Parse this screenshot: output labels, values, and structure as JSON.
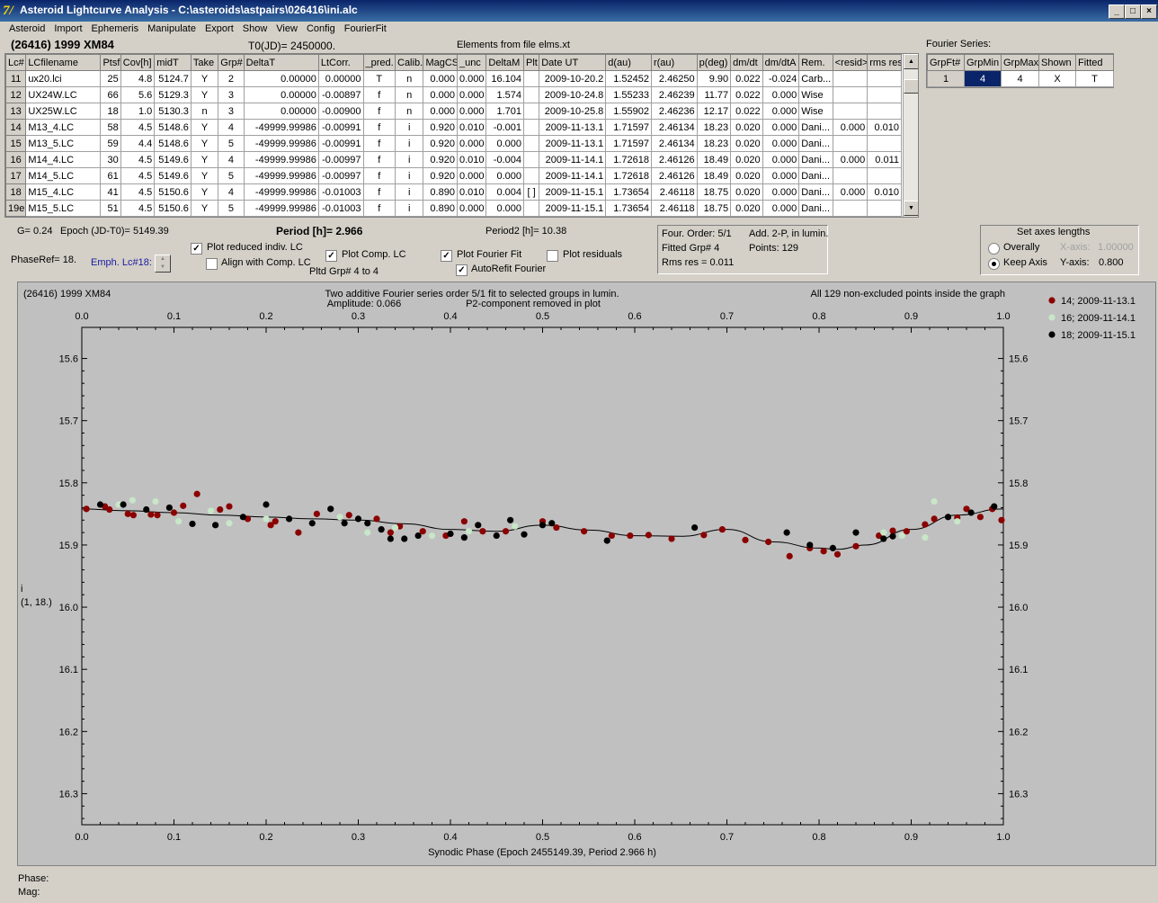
{
  "window": {
    "title": "Asteroid Lightcurve Analysis - C:\\asteroids\\astpairs\\026416\\ini.alc"
  },
  "menu": [
    "Asteroid",
    "Import",
    "Ephemeris",
    "Manipulate",
    "Export",
    "Show",
    "View",
    "Config",
    "FourierFit"
  ],
  "header": {
    "asteroid": "(26416) 1999 XM84",
    "t0": "T0(JD)= 2450000.",
    "elements": "Elements from file elms.xt"
  },
  "table": {
    "columns": [
      "Lc#",
      "LCfilename",
      "Ptsf",
      "Cov[h]",
      "midT",
      "Take",
      "Grp#",
      "DeltaT",
      "LtCorr.",
      "_pred.",
      "Calib.",
      "MagCS",
      "_unc",
      "DeltaM",
      "Plt",
      "Date UT",
      "d(au)",
      "r(au)",
      "p(deg)",
      "dm/dt",
      "dm/dtA",
      "Rem.",
      "<resid>",
      "rms res"
    ],
    "rows": [
      [
        "11",
        "ux20.lci",
        "25",
        "4.8",
        "5124.7",
        "Y",
        "2",
        "0.00000",
        "0.00000",
        "T",
        "n",
        "0.000",
        "0.000",
        "16.104",
        "",
        "2009-10-20.2",
        "1.52452",
        "2.46250",
        "9.90",
        "0.022",
        "-0.024",
        "Carb...",
        "",
        ""
      ],
      [
        "12",
        "UX24W.LC",
        "66",
        "5.6",
        "5129.3",
        "Y",
        "3",
        "0.00000",
        "-0.00897",
        "f",
        "n",
        "0.000",
        "0.000",
        "1.574",
        "",
        "2009-10-24.8",
        "1.55233",
        "2.46239",
        "11.77",
        "0.022",
        "0.000",
        "Wise",
        "",
        ""
      ],
      [
        "13",
        "UX25W.LC",
        "18",
        "1.0",
        "5130.3",
        "n",
        "3",
        "0.00000",
        "-0.00900",
        "f",
        "n",
        "0.000",
        "0.000",
        "1.701",
        "",
        "2009-10-25.8",
        "1.55902",
        "2.46236",
        "12.17",
        "0.022",
        "0.000",
        "Wise",
        "",
        ""
      ],
      [
        "14",
        "M13_4.LC",
        "58",
        "4.5",
        "5148.6",
        "Y",
        "4",
        "-49999.99986",
        "-0.00991",
        "f",
        "i",
        "0.920",
        "0.010",
        "-0.001",
        "",
        "2009-11-13.1",
        "1.71597",
        "2.46134",
        "18.23",
        "0.020",
        "0.000",
        "Dani...",
        "0.000",
        "0.010"
      ],
      [
        "15",
        "M13_5.LC",
        "59",
        "4.4",
        "5148.6",
        "Y",
        "5",
        "-49999.99986",
        "-0.00991",
        "f",
        "i",
        "0.920",
        "0.000",
        "0.000",
        "",
        "2009-11-13.1",
        "1.71597",
        "2.46134",
        "18.23",
        "0.020",
        "0.000",
        "Dani...",
        "",
        ""
      ],
      [
        "16",
        "M14_4.LC",
        "30",
        "4.5",
        "5149.6",
        "Y",
        "4",
        "-49999.99986",
        "-0.00997",
        "f",
        "i",
        "0.920",
        "0.010",
        "-0.004",
        "",
        "2009-11-14.1",
        "1.72618",
        "2.46126",
        "18.49",
        "0.020",
        "0.000",
        "Dani...",
        "0.000",
        "0.011"
      ],
      [
        "17",
        "M14_5.LC",
        "61",
        "4.5",
        "5149.6",
        "Y",
        "5",
        "-49999.99986",
        "-0.00997",
        "f",
        "i",
        "0.920",
        "0.000",
        "0.000",
        "",
        "2009-11-14.1",
        "1.72618",
        "2.46126",
        "18.49",
        "0.020",
        "0.000",
        "Dani...",
        "",
        ""
      ],
      [
        "18",
        "M15_4.LC",
        "41",
        "4.5",
        "5150.6",
        "Y",
        "4",
        "-49999.99986",
        "-0.01003",
        "f",
        "i",
        "0.890",
        "0.010",
        "0.004",
        "[ ]",
        "2009-11-15.1",
        "1.73654",
        "2.46118",
        "18.75",
        "0.020",
        "0.000",
        "Dani...",
        "0.000",
        "0.010"
      ],
      [
        "19e",
        "M15_5.LC",
        "51",
        "4.5",
        "5150.6",
        "Y",
        "5",
        "-49999.99986",
        "-0.01003",
        "f",
        "i",
        "0.890",
        "0.000",
        "0.000",
        "",
        "2009-11-15.1",
        "1.73654",
        "2.46118",
        "18.75",
        "0.020",
        "0.000",
        "Dani...",
        "",
        ""
      ]
    ]
  },
  "fourier_series": {
    "label": "Fourier Series:",
    "columns": [
      "GrpFt#",
      "GrpMin",
      "GrpMax",
      "Shown",
      "Fitted"
    ],
    "row": [
      "1",
      "4",
      "4",
      "X",
      "T"
    ]
  },
  "controls": {
    "g": "G= 0.24",
    "epoch": "Epoch (JD-T0)= 5149.39",
    "period": "Period [h]= 2.966",
    "period2": "Period2 [h]= 10.38",
    "phaseref": "PhaseRef= 18.",
    "emph": "Emph. Lc#18:",
    "plot_reduced": "Plot reduced indiv. LC",
    "align_comp": "Align with Comp. LC",
    "plot_comp": "Plot Comp. LC",
    "pltd_grp": "Pltd Grp#  4  to  4",
    "plot_fourier": "Plot Fourier Fit",
    "autorefit": "AutoRefit Fourier",
    "plot_residuals": "Plot residuals"
  },
  "fit_info": {
    "four_order": "Four. Order:  5/1",
    "add": "Add. 2-P, in lumin.",
    "fitted_grp": "Fitted Grp# 4",
    "points": "Points: 129",
    "rms": "Rms res      = 0.011"
  },
  "axes_box": {
    "title": "Set axes lengths",
    "overally": "Overally",
    "keep": "Keep Axis",
    "x_label": "X-axis:",
    "x_value": "1.00000",
    "y_label": "Y-axis:",
    "y_value": "0.800"
  },
  "status": {
    "phase": "Phase:",
    "mag": "Mag:"
  },
  "chart_data": {
    "type": "scatter",
    "title": "Two additive Fourier series order 5/1 fit to selected groups in lumin.",
    "subtitle_left": "(26416) 1999 XM84",
    "subtitle_right": "All 129 non-excluded points inside the graph",
    "amplitude": "Amplitude: 0.066",
    "p2_note": "P2-component removed in plot",
    "xlabel": "Synodic Phase (Epoch 2455149.39, Period 2.966 h)",
    "ylabel": "i",
    "ylabel2": "(1, 18.)",
    "xlim": [
      0,
      1.0
    ],
    "ylim": [
      16.35,
      15.55
    ],
    "y_inverted": true,
    "x_ticks": [
      "0.0",
      "0.1",
      "0.2",
      "0.3",
      "0.4",
      "0.5",
      "0.6",
      "0.7",
      "0.8",
      "0.9",
      "1.0"
    ],
    "y_ticks": [
      "15.6",
      "15.7",
      "15.8",
      "15.9",
      "16.0",
      "16.1",
      "16.2",
      "16.3"
    ],
    "series": [
      {
        "name": "14; 2009-11-13.1",
        "color": "#8b0000",
        "x": [
          0.005,
          0.025,
          0.03,
          0.05,
          0.056,
          0.075,
          0.082,
          0.1,
          0.11,
          0.125,
          0.15,
          0.16,
          0.18,
          0.205,
          0.21,
          0.235,
          0.255,
          0.29,
          0.32,
          0.335,
          0.345,
          0.37,
          0.395,
          0.415,
          0.435,
          0.46,
          0.5,
          0.515,
          0.545,
          0.575,
          0.595,
          0.615,
          0.64,
          0.675,
          0.695,
          0.72,
          0.745,
          0.768,
          0.79,
          0.805,
          0.82,
          0.84,
          0.865,
          0.88,
          0.895,
          0.915,
          0.925,
          0.95,
          0.96,
          0.975,
          0.988,
          0.998
        ],
        "y": [
          15.842,
          15.838,
          15.843,
          15.85,
          15.852,
          15.851,
          15.852,
          15.848,
          15.837,
          15.818,
          15.843,
          15.838,
          15.858,
          15.868,
          15.862,
          15.88,
          15.85,
          15.852,
          15.858,
          15.88,
          15.87,
          15.878,
          15.885,
          15.862,
          15.878,
          15.878,
          15.862,
          15.872,
          15.878,
          15.885,
          15.885,
          15.884,
          15.89,
          15.884,
          15.875,
          15.892,
          15.895,
          15.918,
          15.905,
          15.91,
          15.915,
          15.902,
          15.885,
          15.877,
          15.878,
          15.867,
          15.858,
          15.856,
          15.842,
          15.855,
          15.842,
          15.86
        ]
      },
      {
        "name": "16; 2009-11-14.1",
        "color": "#c8e6c8",
        "x": [
          0.04,
          0.055,
          0.08,
          0.105,
          0.14,
          0.16,
          0.2,
          0.25,
          0.28,
          0.31,
          0.34,
          0.38,
          0.42,
          0.47,
          0.87,
          0.89,
          0.915,
          0.925,
          0.95
        ],
        "y": [
          15.835,
          15.828,
          15.83,
          15.862,
          15.845,
          15.865,
          15.858,
          15.865,
          15.855,
          15.88,
          15.872,
          15.885,
          15.878,
          15.87,
          15.88,
          15.885,
          15.888,
          15.83,
          15.862
        ]
      },
      {
        "name": "18; 2009-11-15.1",
        "color": "#000000",
        "x": [
          0.02,
          0.045,
          0.07,
          0.095,
          0.12,
          0.145,
          0.175,
          0.2,
          0.225,
          0.25,
          0.27,
          0.285,
          0.3,
          0.31,
          0.325,
          0.335,
          0.35,
          0.365,
          0.4,
          0.415,
          0.43,
          0.45,
          0.465,
          0.48,
          0.5,
          0.51,
          0.57,
          0.665,
          0.765,
          0.79,
          0.815,
          0.84,
          0.87,
          0.88,
          0.94,
          0.965,
          0.99
        ],
        "y": [
          15.835,
          15.835,
          15.843,
          15.84,
          15.866,
          15.868,
          15.855,
          15.835,
          15.858,
          15.865,
          15.842,
          15.865,
          15.858,
          15.865,
          15.875,
          15.89,
          15.89,
          15.885,
          15.882,
          15.888,
          15.868,
          15.885,
          15.86,
          15.883,
          15.868,
          15.865,
          15.893,
          15.872,
          15.88,
          15.9,
          15.905,
          15.88,
          15.89,
          15.886,
          15.855,
          15.848,
          15.838
        ]
      }
    ],
    "fit_curve": {
      "x": [
        0.0,
        0.05,
        0.1,
        0.15,
        0.2,
        0.25,
        0.3,
        0.35,
        0.4,
        0.45,
        0.5,
        0.55,
        0.6,
        0.65,
        0.7,
        0.75,
        0.8,
        0.82,
        0.85,
        0.9,
        0.95,
        1.0
      ],
      "y": [
        15.842,
        15.845,
        15.848,
        15.852,
        15.855,
        15.858,
        15.86,
        15.866,
        15.875,
        15.878,
        15.868,
        15.876,
        15.885,
        15.886,
        15.875,
        15.895,
        15.905,
        15.907,
        15.9,
        15.875,
        15.852,
        15.842
      ]
    }
  }
}
